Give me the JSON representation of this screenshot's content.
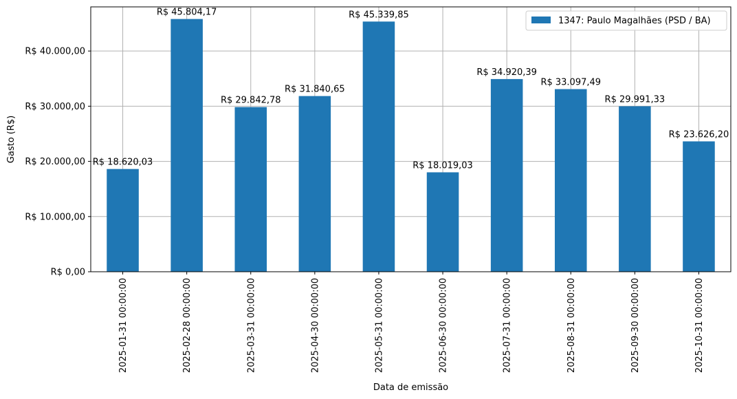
{
  "chart_data": {
    "type": "bar",
    "title": "",
    "xlabel": "Data de emissão",
    "ylabel": "Gasto (R$)",
    "categories": [
      "2025-01-31 00:00:00",
      "2025-02-28 00:00:00",
      "2025-03-31 00:00:00",
      "2025-04-30 00:00:00",
      "2025-05-31 00:00:00",
      "2025-06-30 00:00:00",
      "2025-07-31 00:00:00",
      "2025-08-31 00:00:00",
      "2025-09-30 00:00:00",
      "2025-10-31 00:00:00"
    ],
    "series": [
      {
        "name": "1347: Paulo Magalhães (PSD / BA)",
        "color": "#1f77b4",
        "values": [
          18620.03,
          45804.17,
          29842.78,
          31840.65,
          45339.85,
          18019.03,
          34920.39,
          33097.49,
          29991.33,
          23626.2
        ],
        "data_labels": [
          "R$ 18.620,03",
          "R$ 45.804,17",
          "R$ 29.842,78",
          "R$ 31.840,65",
          "R$ 45.339,85",
          "R$ 18.019,03",
          "R$ 34.920,39",
          "R$ 33.097,49",
          "R$ 29.991,33",
          "R$ 23.626,20"
        ]
      }
    ],
    "yticks": [
      0,
      10000,
      20000,
      30000,
      40000
    ],
    "ytick_labels": [
      "R$ 0,00",
      "R$ 10.000,00",
      "R$ 20.000,00",
      "R$ 30.000,00",
      "R$ 40.000,00"
    ],
    "ylim": [
      0,
      48000
    ],
    "grid": true,
    "legend_position": "top-right"
  }
}
